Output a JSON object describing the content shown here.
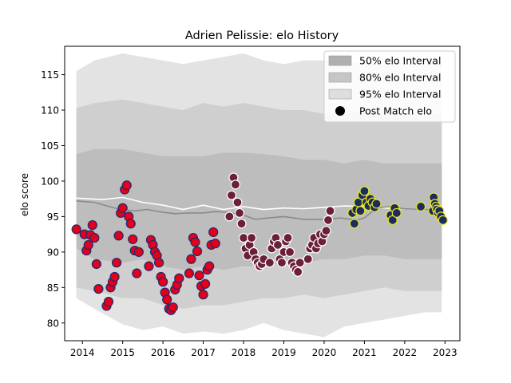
{
  "chart_data": {
    "type": "scatter",
    "title": "Adrien Pelissie: elo History",
    "xlabel": "",
    "ylabel": "elo score",
    "xlim": [
      2013.56,
      2023.37
    ],
    "ylim": [
      77.5,
      119.0
    ],
    "x_ticks": [
      {
        "value": 2014,
        "label": "2014"
      },
      {
        "value": 2015,
        "label": "2015"
      },
      {
        "value": 2016,
        "label": "2016"
      },
      {
        "value": 2017,
        "label": "2017"
      },
      {
        "value": 2018,
        "label": "2018"
      },
      {
        "value": 2019,
        "label": "2019"
      },
      {
        "value": 2020,
        "label": "2020"
      },
      {
        "value": 2021,
        "label": "2021"
      },
      {
        "value": 2022,
        "label": "2022"
      },
      {
        "value": 2023,
        "label": "2023"
      }
    ],
    "y_ticks": [
      {
        "value": 80,
        "label": "80"
      },
      {
        "value": 85,
        "label": "85"
      },
      {
        "value": 90,
        "label": "90"
      },
      {
        "value": 95,
        "label": "95"
      },
      {
        "value": 100,
        "label": "100"
      },
      {
        "value": 105,
        "label": "105"
      },
      {
        "value": 110,
        "label": "110"
      },
      {
        "value": 115,
        "label": "115"
      }
    ],
    "grid": false,
    "legend_position": "top-right",
    "legend": [
      {
        "label": "50% elo Interval",
        "kind": "patch",
        "color": "#b0b0b0"
      },
      {
        "label": "80% elo Interval",
        "kind": "patch",
        "color": "#c6c6c6"
      },
      {
        "label": "95% elo Interval",
        "kind": "patch",
        "color": "#dedede"
      },
      {
        "label": "Post Match elo",
        "kind": "marker",
        "color": "#000000"
      }
    ],
    "bands": [
      {
        "name": "95% elo Interval",
        "color": "#e3e3e3",
        "x": [
          2013.85,
          2014.3,
          2015.0,
          2015.5,
          2016.0,
          2016.5,
          2017.0,
          2017.5,
          2018.0,
          2018.5,
          2019.0,
          2019.5,
          2020.0,
          2020.5,
          2021.0,
          2021.5,
          2022.0,
          2022.5,
          2022.92
        ],
        "upper": [
          115.5,
          117.0,
          118.0,
          117.5,
          117.0,
          116.5,
          117.0,
          117.5,
          118.0,
          117.0,
          116.5,
          117.0,
          117.0,
          116.5,
          116.8,
          116.5,
          116.7,
          116.8,
          116.8
        ],
        "lower": [
          83.5,
          82.0,
          79.8,
          79.0,
          79.5,
          78.5,
          78.8,
          78.5,
          79.0,
          80.0,
          79.0,
          78.5,
          78.0,
          79.5,
          80.0,
          80.5,
          81.0,
          81.5,
          81.5
        ]
      },
      {
        "name": "80% elo Interval",
        "color": "#cfcfcf",
        "x": [
          2013.85,
          2014.3,
          2015.0,
          2015.5,
          2016.0,
          2016.5,
          2017.0,
          2017.5,
          2018.0,
          2018.5,
          2019.0,
          2019.5,
          2020.0,
          2020.5,
          2021.0,
          2021.5,
          2022.0,
          2022.5,
          2022.92
        ],
        "upper": [
          110.3,
          111.0,
          111.5,
          111.0,
          110.5,
          110.0,
          111.0,
          110.5,
          111.0,
          110.5,
          110.0,
          110.0,
          109.5,
          109.5,
          110.0,
          109.5,
          109.5,
          109.5,
          109.5
        ],
        "lower": [
          85.0,
          84.5,
          83.5,
          83.5,
          82.5,
          82.0,
          82.5,
          82.5,
          83.0,
          83.5,
          83.5,
          84.0,
          83.5,
          84.0,
          84.5,
          85.0,
          84.5,
          84.5,
          84.5
        ]
      },
      {
        "name": "50% elo Interval",
        "color": "#bdbdbd",
        "x": [
          2013.85,
          2014.3,
          2015.0,
          2015.5,
          2016.0,
          2016.5,
          2017.0,
          2017.5,
          2018.0,
          2018.5,
          2019.0,
          2019.5,
          2020.0,
          2020.5,
          2021.0,
          2021.5,
          2022.0,
          2022.5,
          2022.92
        ],
        "upper": [
          103.8,
          104.5,
          104.5,
          104.0,
          103.5,
          103.5,
          103.5,
          104.0,
          104.0,
          103.8,
          103.5,
          103.0,
          103.0,
          102.5,
          103.0,
          102.5,
          102.5,
          102.5,
          102.5
        ],
        "lower": [
          90.5,
          89.0,
          88.5,
          89.0,
          88.0,
          87.5,
          88.0,
          87.5,
          88.0,
          88.0,
          88.5,
          88.5,
          89.0,
          89.0,
          89.5,
          89.5,
          89.0,
          89.0,
          89.0
        ]
      }
    ],
    "lines": [
      {
        "name": "mean",
        "color": "#ffffff",
        "x": [
          2013.85,
          2014.5,
          2015.0,
          2015.5,
          2016.0,
          2016.5,
          2017.0,
          2017.5,
          2018.0,
          2018.5,
          2019.0,
          2019.5,
          2020.0,
          2020.5,
          2021.0,
          2021.5,
          2022.0,
          2022.5,
          2022.92
        ],
        "y": [
          97.6,
          97.4,
          97.7,
          97.0,
          96.6,
          96.0,
          96.6,
          96.0,
          96.4,
          96.0,
          96.2,
          96.1,
          96.3,
          96.5,
          96.4,
          96.2,
          96.1,
          96.0,
          96.0
        ]
      },
      {
        "name": "median",
        "color": "#8a8a8a",
        "x": [
          2013.85,
          2014.3,
          2014.8,
          2015.0,
          2015.3,
          2015.6,
          2016.0,
          2016.3,
          2016.6,
          2017.0,
          2017.3,
          2017.6,
          2018.0,
          2018.3,
          2018.6,
          2019.0,
          2019.5,
          2020.0,
          2020.4,
          2020.8,
          2021.0,
          2021.3,
          2021.6,
          2022.0,
          2022.5,
          2022.92
        ],
        "y": [
          97.2,
          97.0,
          96.2,
          96.0,
          95.8,
          96.0,
          95.6,
          95.4,
          95.5,
          95.5,
          95.7,
          95.6,
          95.2,
          94.6,
          94.8,
          95.0,
          94.6,
          94.6,
          94.8,
          94.5,
          94.8,
          96.2,
          96.4,
          96.1,
          96.0,
          96.0
        ]
      }
    ],
    "series": [
      {
        "name": "Post Match elo",
        "fill": "#e2001a",
        "edge": "#1f2a6e",
        "x": [
          2013.85,
          2014.05,
          2014.1,
          2014.15,
          2014.2,
          2014.25,
          2014.3,
          2014.35,
          2014.4,
          2014.6,
          2014.65,
          2014.7,
          2014.75,
          2014.8,
          2014.85,
          2014.9,
          2014.95,
          2015.0,
          2015.05,
          2015.1,
          2015.15,
          2015.2,
          2015.25,
          2015.3,
          2015.35,
          2015.4,
          2015.65,
          2015.7,
          2015.75,
          2015.8,
          2015.85,
          2015.9,
          2015.95,
          2016.0,
          2016.05,
          2016.1,
          2016.15,
          2016.2,
          2016.25,
          2016.3,
          2016.35,
          2016.4,
          2016.65,
          2016.7,
          2016.75,
          2016.8,
          2016.85,
          2016.9,
          2016.95,
          2017.0,
          2017.05,
          2017.1,
          2017.15,
          2017.2,
          2017.25,
          2017.3
        ],
        "y": [
          93.2,
          92.5,
          90.2,
          91.0,
          92.4,
          93.8,
          92.0,
          88.3,
          84.8,
          82.4,
          83.0,
          85.0,
          85.8,
          86.5,
          88.5,
          92.3,
          95.5,
          96.2,
          98.8,
          99.4,
          95.0,
          94.0,
          91.8,
          90.2,
          87.0,
          90.0,
          88.0,
          91.7,
          91.0,
          90.0,
          89.5,
          88.5,
          86.5,
          85.8,
          84.3,
          83.3,
          82.0,
          81.8,
          82.2,
          84.7,
          85.4,
          86.3,
          87.0,
          89.0,
          92.0,
          91.4,
          90.1,
          86.7,
          85.2,
          84.0,
          85.5,
          87.5,
          88.0,
          91.0,
          92.8,
          91.2
        ],
        "size": 5.5
      },
      {
        "name": "Post Match elo",
        "fill": "#6b1f3a",
        "edge": "#ffffff",
        "x": [
          2017.65,
          2017.7,
          2017.75,
          2017.8,
          2017.85,
          2017.9,
          2017.95,
          2018.0,
          2018.05,
          2018.1,
          2018.15,
          2018.2,
          2018.25,
          2018.3,
          2018.35,
          2018.4,
          2018.45,
          2018.5,
          2018.65,
          2018.7,
          2018.75,
          2018.8,
          2018.85,
          2018.9,
          2018.95,
          2019.0,
          2019.05,
          2019.1,
          2019.15,
          2019.2,
          2019.25,
          2019.3,
          2019.35,
          2019.4,
          2019.6,
          2019.65,
          2019.7,
          2019.75,
          2019.8,
          2019.85,
          2019.9,
          2019.95,
          2020.0,
          2020.05,
          2020.1,
          2020.15
        ],
        "y": [
          95.0,
          98.0,
          100.5,
          99.5,
          97.0,
          95.5,
          94.0,
          92.0,
          90.5,
          89.5,
          91.0,
          92.0,
          90.0,
          89.0,
          88.5,
          88.0,
          88.3,
          89.0,
          88.5,
          90.5,
          91.5,
          92.0,
          91.0,
          89.0,
          88.5,
          90.0,
          91.5,
          92.0,
          90.0,
          88.5,
          88.0,
          87.5,
          87.2,
          88.5,
          89.0,
          90.5,
          91.0,
          92.0,
          90.5,
          91.2,
          92.5,
          91.5,
          92.5,
          93.0,
          94.5,
          95.8
        ],
        "size": 5.5
      },
      {
        "name": "Post Match elo",
        "fill": "#1c2c5e",
        "edge": "#e8e822",
        "x": [
          2020.7,
          2020.75,
          2020.8,
          2020.85,
          2020.9,
          2020.95,
          2021.0,
          2021.05,
          2021.1,
          2021.15,
          2021.2,
          2021.25,
          2021.3,
          2021.65,
          2021.7,
          2021.75,
          2021.8
        ],
        "y": [
          95.5,
          94.0,
          96.0,
          97.0,
          95.8,
          98.0,
          98.6,
          97.0,
          96.5,
          97.5,
          97.0,
          96.3,
          96.8,
          95.2,
          94.5,
          96.2,
          95.5
        ],
        "size": 5.5
      },
      {
        "name": "Post Match elo",
        "fill": "#1c2c5e",
        "edge": "#e8e822",
        "x": [
          2022.4,
          2022.7,
          2022.72,
          2022.75,
          2022.78,
          2022.8,
          2022.83,
          2022.86,
          2022.9,
          2022.95
        ],
        "y": [
          96.4,
          95.8,
          97.7,
          96.8,
          96.4,
          96.0,
          95.5,
          95.8,
          95.0,
          94.5
        ],
        "size": 5.5
      }
    ]
  }
}
